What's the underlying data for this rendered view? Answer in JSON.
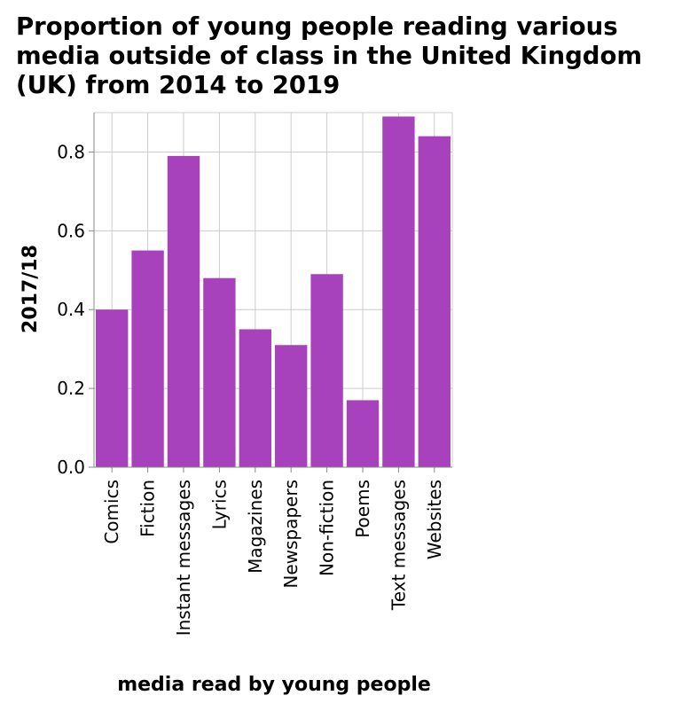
{
  "chart_data": {
    "type": "bar",
    "title": "Proportion of young people reading various media outside of class in the United Kingdom (UK) from 2014 to 2019",
    "xlabel": "media read by young people",
    "ylabel": "2017/18",
    "categories": [
      "Comics",
      "Fiction",
      "Instant messages",
      "Lyrics",
      "Magazines",
      "Newspapers",
      "Non-fiction",
      "Poems",
      "Text messages",
      "Websites"
    ],
    "values": [
      0.4,
      0.55,
      0.79,
      0.48,
      0.35,
      0.31,
      0.49,
      0.17,
      0.89,
      0.84
    ],
    "ylim": [
      0,
      0.9
    ],
    "yticks": [
      "0.0",
      "0.2",
      "0.4",
      "0.6",
      "0.8"
    ],
    "grid": true,
    "legend": "none",
    "bar_color": "#a742bc",
    "grid_color": "#cccccc"
  }
}
